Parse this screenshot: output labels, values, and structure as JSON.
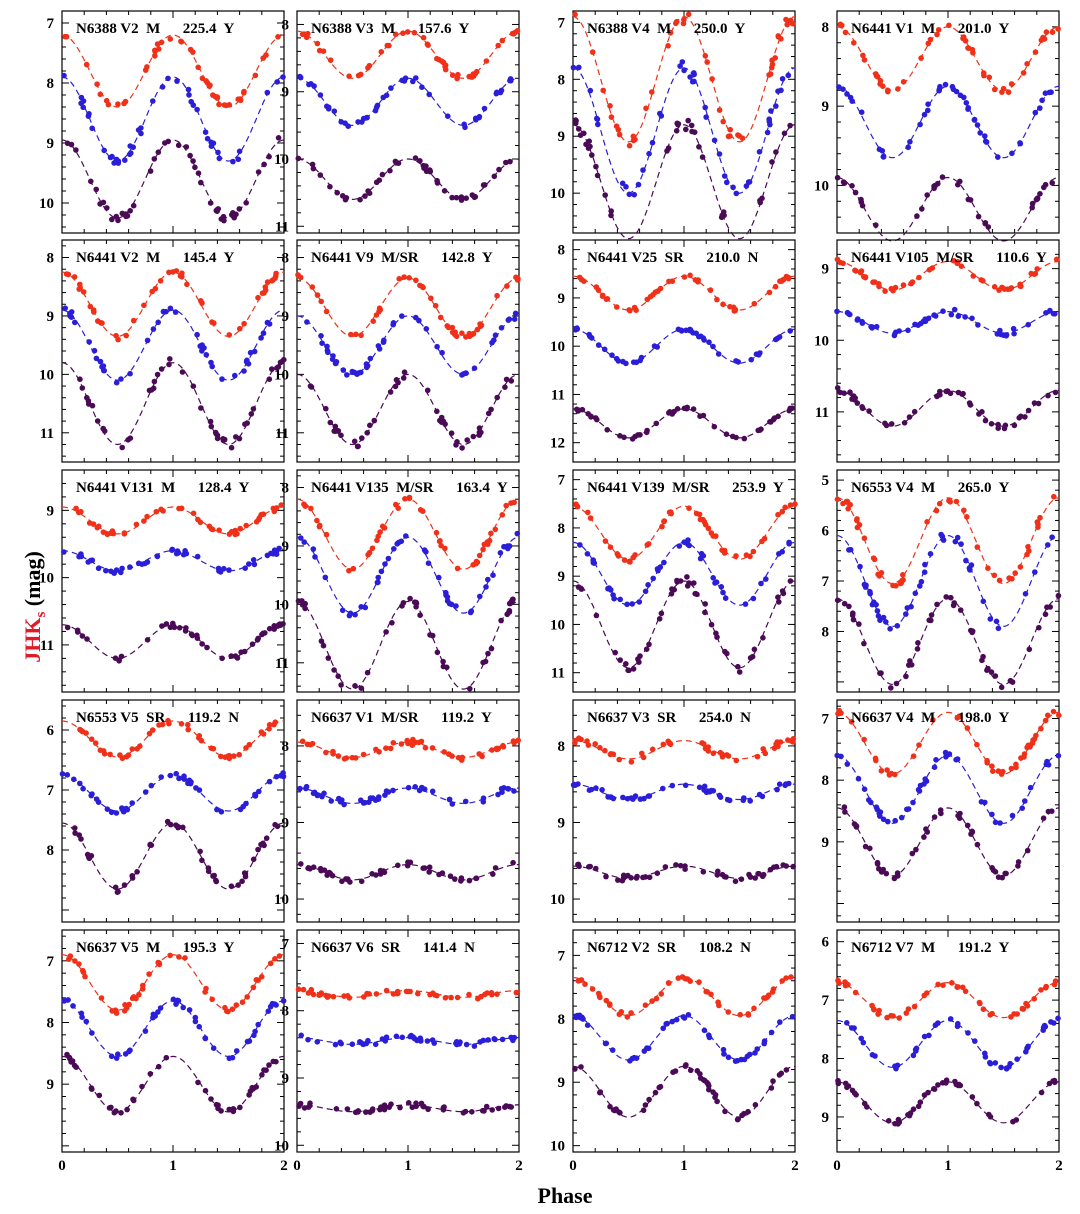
{
  "figure": {
    "xlabel": "Phase",
    "ylabel_prefix": "JHK",
    "ylabel_sub": "s",
    "ylabel_suffix": " (mag)",
    "colors": {
      "J": "#f03018",
      "H": "#2a1ed8",
      "K": "#4a0a55",
      "outlier": "#c8c8c8"
    }
  },
  "chart_data": [
    {
      "type": "scatter",
      "title": "N6388 V2  M      225.4  Y",
      "star": "N6388 V2",
      "class": "M",
      "period": 225.4,
      "flag": "Y",
      "x": [
        0,
        1,
        2
      ],
      "ylim": [
        10.5,
        6.8
      ],
      "yticks": [
        7,
        8,
        9,
        10
      ],
      "series": [
        {
          "name": "J",
          "mean": 7.8,
          "amp": 0.6
        },
        {
          "name": "H",
          "mean": 8.6,
          "amp": 0.7
        },
        {
          "name": "K",
          "mean": 9.6,
          "amp": 0.65
        }
      ]
    },
    {
      "type": "scatter",
      "title": "N6388 V3  M      157.6  Y",
      "star": "N6388 V3",
      "class": "M",
      "period": 157.6,
      "flag": "Y",
      "x": [
        0,
        1,
        2
      ],
      "ylim": [
        11.1,
        7.8
      ],
      "yticks": [
        8,
        9,
        10,
        11
      ],
      "series": [
        {
          "name": "J",
          "mean": 8.45,
          "amp": 0.35
        },
        {
          "name": "H",
          "mean": 9.15,
          "amp": 0.35
        },
        {
          "name": "K",
          "mean": 10.3,
          "amp": 0.3
        }
      ]
    },
    {
      "type": "scatter",
      "title": "N6388 V4  M      250.0  Y",
      "star": "N6388 V4",
      "class": "M",
      "period": 250.0,
      "flag": "Y",
      "x": [
        0,
        1,
        2
      ],
      "ylim": [
        10.7,
        6.8
      ],
      "yticks": [
        7,
        8,
        9,
        10
      ],
      "series": [
        {
          "name": "J",
          "mean": 8.0,
          "amp": 1.1
        },
        {
          "name": "H",
          "mean": 8.9,
          "amp": 1.1
        },
        {
          "name": "K",
          "mean": 9.8,
          "amp": 1.0
        }
      ]
    },
    {
      "type": "scatter",
      "title": "N6441 V1  M      201.0  Y",
      "star": "N6441 V1",
      "class": "M",
      "period": 201.0,
      "flag": "Y",
      "x": [
        0,
        1,
        2
      ],
      "ylim": [
        10.6,
        7.8
      ],
      "yticks": [
        8,
        9,
        10
      ],
      "series": [
        {
          "name": "J",
          "mean": 8.4,
          "amp": 0.4
        },
        {
          "name": "H",
          "mean": 9.2,
          "amp": 0.45
        },
        {
          "name": "K",
          "mean": 10.3,
          "amp": 0.4
        }
      ]
    },
    {
      "type": "scatter",
      "title": "N6441 V2  M      145.4  Y",
      "star": "N6441 V2",
      "class": "M",
      "period": 145.4,
      "flag": "Y",
      "x": [
        0,
        1,
        2
      ],
      "ylim": [
        11.5,
        7.7
      ],
      "yticks": [
        8,
        9,
        10,
        11
      ],
      "series": [
        {
          "name": "J",
          "mean": 8.8,
          "amp": 0.55
        },
        {
          "name": "H",
          "mean": 9.5,
          "amp": 0.6
        },
        {
          "name": "K",
          "mean": 10.5,
          "amp": 0.7
        }
      ]
    },
    {
      "type": "scatter",
      "title": "N6441 V9  M/SR      142.8  Y",
      "star": "N6441 V9",
      "class": "M/SR",
      "period": 142.8,
      "flag": "Y",
      "x": [
        0,
        1,
        2
      ],
      "ylim": [
        11.5,
        7.7
      ],
      "yticks": [
        8,
        9,
        10,
        11
      ],
      "series": [
        {
          "name": "J",
          "mean": 8.85,
          "amp": 0.5
        },
        {
          "name": "H",
          "mean": 9.5,
          "amp": 0.5
        },
        {
          "name": "K",
          "mean": 10.6,
          "amp": 0.6
        }
      ]
    },
    {
      "type": "scatter",
      "title": "N6441 V25  SR      210.0  N",
      "star": "N6441 V25",
      "class": "SR",
      "period": 210.0,
      "flag": "N",
      "x": [
        0,
        1,
        2
      ],
      "ylim": [
        12.4,
        7.8
      ],
      "yticks": [
        8,
        9,
        10,
        11,
        12
      ],
      "series": [
        {
          "name": "J",
          "mean": 8.9,
          "amp": 0.35
        },
        {
          "name": "H",
          "mean": 10.0,
          "amp": 0.35
        },
        {
          "name": "K",
          "mean": 11.6,
          "amp": 0.3
        }
      ]
    },
    {
      "type": "scatter",
      "title": "N6441 V105  M/SR      110.6  Y",
      "star": "N6441 V105",
      "class": "M/SR",
      "period": 110.6,
      "flag": "Y",
      "x": [
        0,
        1,
        2
      ],
      "ylim": [
        11.7,
        8.6
      ],
      "yticks": [
        9,
        10,
        11
      ],
      "series": [
        {
          "name": "J",
          "mean": 9.1,
          "amp": 0.2
        },
        {
          "name": "H",
          "mean": 9.75,
          "amp": 0.15
        },
        {
          "name": "K",
          "mean": 10.95,
          "amp": 0.25
        }
      ]
    },
    {
      "type": "scatter",
      "title": "N6441 V131  M      128.4  Y",
      "star": "N6441 V131",
      "class": "M",
      "period": 128.4,
      "flag": "Y",
      "x": [
        0,
        1,
        2
      ],
      "ylim": [
        11.7,
        8.4
      ],
      "yticks": [
        9,
        10,
        11
      ],
      "series": [
        {
          "name": "J",
          "mean": 9.15,
          "amp": 0.2
        },
        {
          "name": "H",
          "mean": 9.75,
          "amp": 0.15
        },
        {
          "name": "K",
          "mean": 10.95,
          "amp": 0.25
        }
      ]
    },
    {
      "type": "scatter",
      "title": "N6441 V135  M/SR      163.4  Y",
      "star": "N6441 V135",
      "class": "M/SR",
      "period": 163.4,
      "flag": "Y",
      "x": [
        0,
        1,
        2
      ],
      "ylim": [
        11.5,
        7.7
      ],
      "yticks": [
        8,
        9,
        10,
        11
      ],
      "series": [
        {
          "name": "J",
          "mean": 8.8,
          "amp": 0.6
        },
        {
          "name": "H",
          "mean": 9.5,
          "amp": 0.65
        },
        {
          "name": "K",
          "mean": 10.7,
          "amp": 0.75
        }
      ]
    },
    {
      "type": "scatter",
      "title": "N6441 V139  M/SR      253.9  Y",
      "star": "N6441 V139",
      "class": "M/SR",
      "period": 253.9,
      "flag": "Y",
      "x": [
        0,
        1,
        2
      ],
      "ylim": [
        11.4,
        6.8
      ],
      "yticks": [
        7,
        8,
        9,
        10,
        11
      ],
      "series": [
        {
          "name": "J",
          "mean": 8.1,
          "amp": 0.55
        },
        {
          "name": "H",
          "mean": 8.95,
          "amp": 0.65
        },
        {
          "name": "K",
          "mean": 10.0,
          "amp": 0.9
        }
      ]
    },
    {
      "type": "scatter",
      "title": "N6553 V4  M      265.0  Y",
      "star": "N6553 V4",
      "class": "M",
      "period": 265.0,
      "flag": "Y",
      "x": [
        0,
        1,
        2
      ],
      "ylim": [
        9.2,
        4.8
      ],
      "yticks": [
        5,
        6,
        7,
        8
      ],
      "series": [
        {
          "name": "J",
          "mean": 6.2,
          "amp": 0.85
        },
        {
          "name": "H",
          "mean": 7.0,
          "amp": 0.9
        },
        {
          "name": "K",
          "mean": 8.2,
          "amp": 0.85
        }
      ]
    },
    {
      "type": "scatter",
      "title": "N6553 V5  SR      119.2  N",
      "star": "N6553 V5",
      "class": "SR",
      "period": 119.2,
      "flag": "N",
      "x": [
        0,
        1,
        2
      ],
      "ylim": [
        9.2,
        5.5
      ],
      "yticks": [
        6,
        7,
        8
      ],
      "series": [
        {
          "name": "J",
          "mean": 6.15,
          "amp": 0.3
        },
        {
          "name": "H",
          "mean": 7.05,
          "amp": 0.3
        },
        {
          "name": "K",
          "mean": 8.1,
          "amp": 0.55
        }
      ]
    },
    {
      "type": "scatter",
      "title": "N6637 V1  M/SR      119.2  Y",
      "star": "N6637 V1",
      "class": "M/SR",
      "period": 119.2,
      "flag": "Y",
      "x": [
        0,
        1,
        2
      ],
      "ylim": [
        10.3,
        7.4
      ],
      "yticks": [
        8,
        9,
        10
      ],
      "series": [
        {
          "name": "J",
          "mean": 8.05,
          "amp": 0.1
        },
        {
          "name": "H",
          "mean": 8.65,
          "amp": 0.1
        },
        {
          "name": "K",
          "mean": 9.65,
          "amp": 0.1
        }
      ]
    },
    {
      "type": "scatter",
      "title": "N6637 V3  SR      254.0  N",
      "star": "N6637 V3",
      "class": "SR",
      "period": 254.0,
      "flag": "N",
      "x": [
        0,
        1,
        2
      ],
      "ylim": [
        10.3,
        7.4
      ],
      "yticks": [
        8,
        9,
        10
      ],
      "series": [
        {
          "name": "J",
          "mean": 8.05,
          "amp": 0.12
        },
        {
          "name": "H",
          "mean": 8.6,
          "amp": 0.1
        },
        {
          "name": "K",
          "mean": 9.65,
          "amp": 0.08
        }
      ]
    },
    {
      "type": "scatter",
      "title": "N6637 V4  M      198.0  Y",
      "star": "N6637 V4",
      "class": "M",
      "period": 198.0,
      "flag": "Y",
      "x": [
        0,
        1,
        2
      ],
      "ylim": [
        10.3,
        6.7
      ],
      "yticks": [
        7,
        8,
        9
      ],
      "series": [
        {
          "name": "J",
          "mean": 7.4,
          "amp": 0.5
        },
        {
          "name": "H",
          "mean": 8.15,
          "amp": 0.55
        },
        {
          "name": "K",
          "mean": 9.0,
          "amp": 0.55
        }
      ]
    },
    {
      "type": "scatter",
      "title": "N6637 V5  M      195.3  Y",
      "star": "N6637 V5",
      "class": "M",
      "period": 195.3,
      "flag": "Y",
      "x": [
        0,
        1,
        2
      ],
      "ylim": [
        10.1,
        6.5
      ],
      "yticks": [
        7,
        8,
        9
      ],
      "series": [
        {
          "name": "J",
          "mean": 7.35,
          "amp": 0.45
        },
        {
          "name": "H",
          "mean": 8.1,
          "amp": 0.45
        },
        {
          "name": "K",
          "mean": 9.0,
          "amp": 0.45
        }
      ]
    },
    {
      "type": "scatter",
      "title": "N6637 V6  SR      141.4  N",
      "star": "N6637 V6",
      "class": "SR",
      "period": 141.4,
      "flag": "N",
      "x": [
        0,
        1,
        2
      ],
      "ylim": [
        10.1,
        6.8
      ],
      "yticks": [
        7,
        8,
        9,
        10
      ],
      "series": [
        {
          "name": "J",
          "mean": 7.75,
          "amp": 0.05
        },
        {
          "name": "H",
          "mean": 8.45,
          "amp": 0.05
        },
        {
          "name": "K",
          "mean": 9.45,
          "amp": 0.05
        }
      ]
    },
    {
      "type": "scatter",
      "title": "N6712 V2  SR      108.2  N",
      "star": "N6712 V2",
      "class": "SR",
      "period": 108.2,
      "flag": "N",
      "x": [
        0,
        1,
        2
      ],
      "ylim": [
        10.1,
        6.6
      ],
      "yticks": [
        7,
        8,
        9,
        10
      ],
      "series": [
        {
          "name": "J",
          "mean": 7.65,
          "amp": 0.3
        },
        {
          "name": "H",
          "mean": 8.3,
          "amp": 0.35
        },
        {
          "name": "K",
          "mean": 9.15,
          "amp": 0.4
        }
      ]
    },
    {
      "type": "scatter",
      "title": "N6712 V7  M      191.2  Y",
      "star": "N6712 V7",
      "class": "M",
      "period": 191.2,
      "flag": "Y",
      "x": [
        0,
        1,
        2
      ],
      "ylim": [
        9.6,
        5.8
      ],
      "yticks": [
        6,
        7,
        8,
        9
      ],
      "series": [
        {
          "name": "J",
          "mean": 7.0,
          "amp": 0.3
        },
        {
          "name": "H",
          "mean": 7.75,
          "amp": 0.4
        },
        {
          "name": "K",
          "mean": 8.75,
          "amp": 0.35
        }
      ]
    }
  ]
}
